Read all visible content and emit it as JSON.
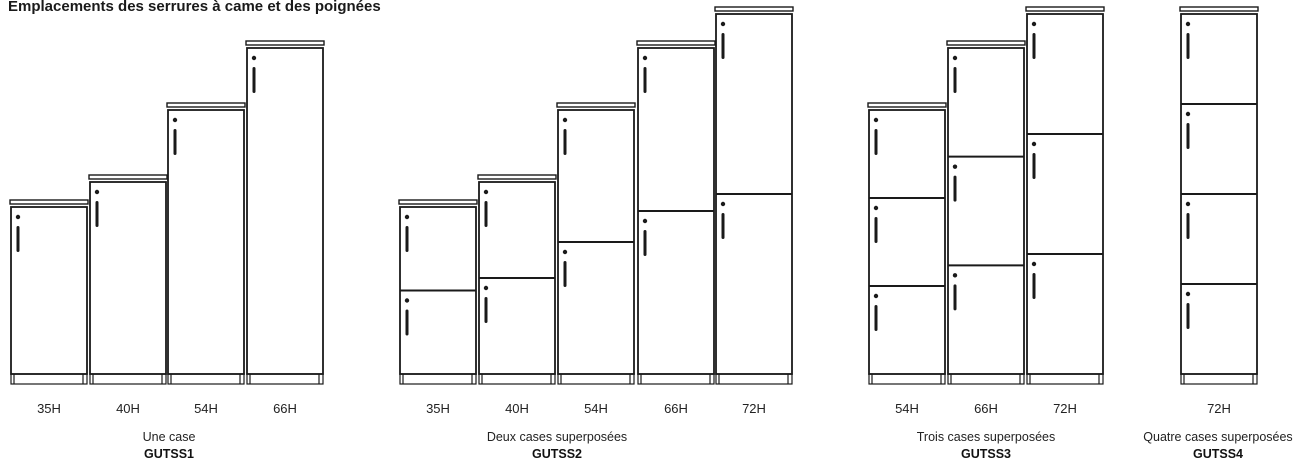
{
  "title": "Emplacements des serrures à came et des poignées",
  "groups": [
    {
      "id": "GUTSS1",
      "description": "Une case",
      "code": "GUTSS1",
      "lockers": [
        {
          "height_label": "35H",
          "doors": 1
        },
        {
          "height_label": "40H",
          "doors": 1
        },
        {
          "height_label": "54H",
          "doors": 1
        },
        {
          "height_label": "66H",
          "doors": 1
        }
      ]
    },
    {
      "id": "GUTSS2",
      "description": "Deux cases superposées",
      "code": "GUTSS2",
      "lockers": [
        {
          "height_label": "35H",
          "doors": 2
        },
        {
          "height_label": "40H",
          "doors": 2
        },
        {
          "height_label": "54H",
          "doors": 2
        },
        {
          "height_label": "66H",
          "doors": 2
        },
        {
          "height_label": "72H",
          "doors": 2
        }
      ]
    },
    {
      "id": "GUTSS3",
      "description": "Trois cases superposées",
      "code": "GUTSS3",
      "lockers": [
        {
          "height_label": "54H",
          "doors": 3
        },
        {
          "height_label": "66H",
          "doors": 3
        },
        {
          "height_label": "72H",
          "doors": 3
        }
      ]
    },
    {
      "id": "GUTSS4",
      "description": "Quatre cases superposées",
      "code": "GUTSS4",
      "lockers": [
        {
          "height_label": "72H",
          "doors": 4
        }
      ]
    }
  ]
}
